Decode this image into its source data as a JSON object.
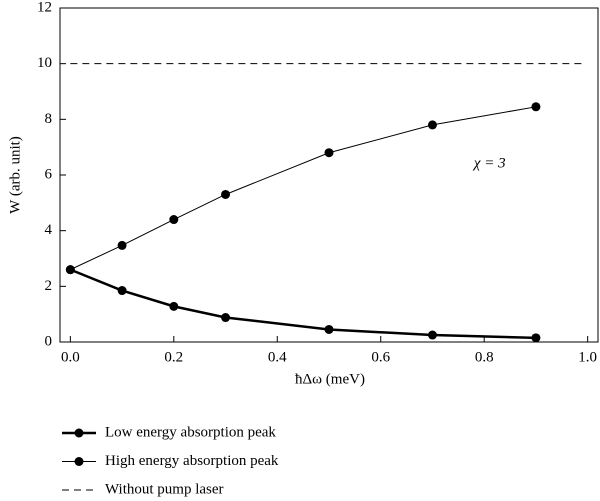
{
  "chart_data": {
    "type": "line",
    "xlabel": "ħΔω (meV)",
    "ylabel": "W (arb. unit)",
    "annotation": "χ = 3",
    "xlim": [
      -0.02,
      1.02
    ],
    "ylim": [
      0,
      12
    ],
    "xticks": [
      {
        "value": 0,
        "label": "0.0"
      },
      {
        "value": 0.2,
        "label": "0.2"
      },
      {
        "value": 0.4,
        "label": "0.4"
      },
      {
        "value": 0.6,
        "label": "0.6"
      },
      {
        "value": 0.8,
        "label": "0.8"
      },
      {
        "value": 1,
        "label": "1.0"
      }
    ],
    "yticks": [
      0,
      2,
      4,
      6,
      8,
      10,
      12
    ],
    "series": [
      {
        "name": "Low energy absorption peak",
        "color": "#000000",
        "line_width": 2.5,
        "markers": true,
        "dashed": false,
        "x": [
          0,
          0.1,
          0.2,
          0.3,
          0.5,
          0.7,
          0.9
        ],
        "values": [
          2.6,
          1.85,
          1.28,
          0.88,
          0.45,
          0.25,
          0.15
        ]
      },
      {
        "name": "High energy absorption peak",
        "color": "#000000",
        "line_width": 1,
        "markers": true,
        "dashed": false,
        "x": [
          0,
          0.1,
          0.2,
          0.3,
          0.5,
          0.7,
          0.9
        ],
        "values": [
          2.6,
          3.47,
          4.4,
          5.3,
          6.8,
          7.8,
          8.45
        ]
      },
      {
        "name": "Without pump laser",
        "color": "#000000",
        "line_width": 1,
        "markers": false,
        "dashed": true,
        "x": [
          0,
          0.99
        ],
        "values": [
          10,
          10
        ]
      }
    ]
  }
}
